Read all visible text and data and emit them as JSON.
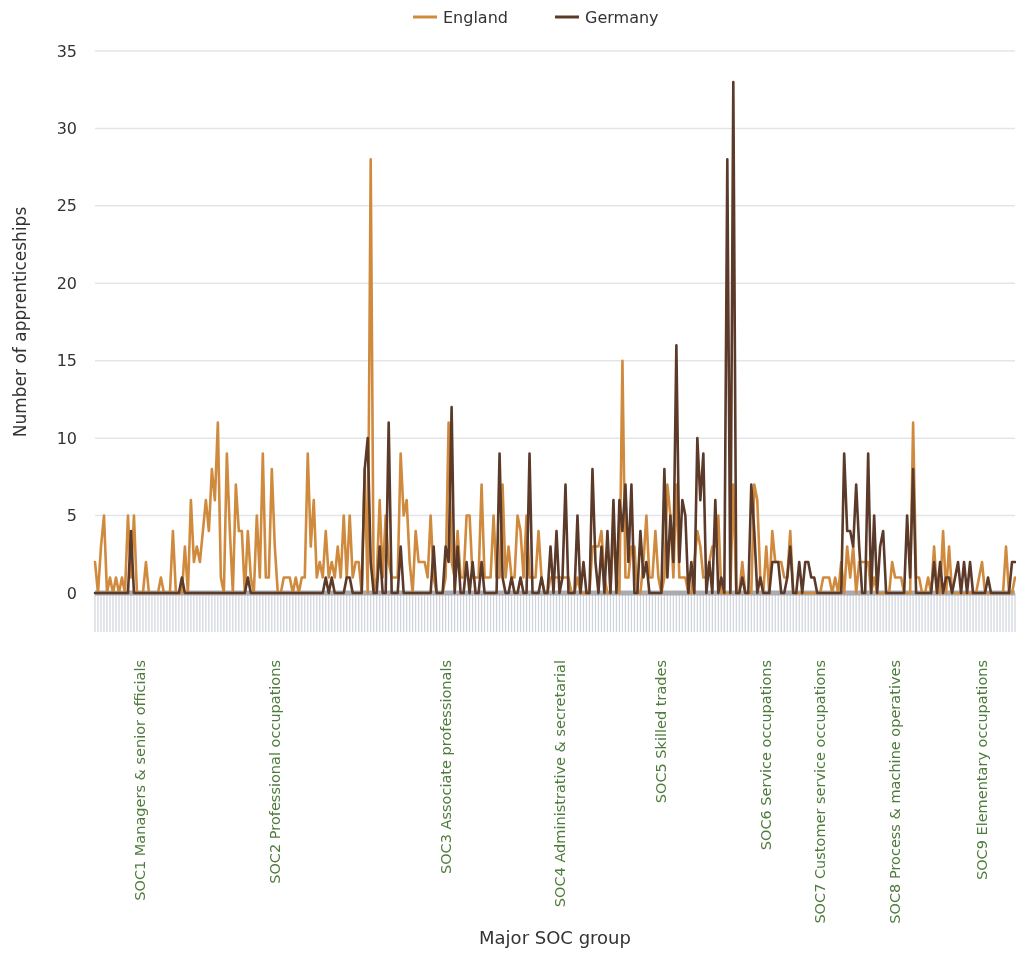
{
  "chart_data": {
    "type": "line",
    "xlabel": "Major SOC group",
    "ylabel": "Number of apprenticeships",
    "categories": [
      null,
      null,
      null,
      null,
      null,
      null,
      null,
      null,
      null,
      null,
      null,
      null,
      null,
      null,
      null,
      "SOC1 Managers & senior officials",
      null,
      null,
      null,
      null,
      null,
      null,
      null,
      null,
      null,
      null,
      null,
      null,
      null,
      null,
      null,
      null,
      null,
      null,
      null,
      null,
      null,
      null,
      null,
      null,
      null,
      null,
      null,
      null,
      null,
      null,
      null,
      null,
      null,
      null,
      null,
      null,
      null,
      null,
      null,
      null,
      null,
      null,
      null,
      null,
      "SOC2 Professional occupations",
      null,
      null,
      null,
      null,
      null,
      null,
      null,
      null,
      null,
      null,
      null,
      null,
      null,
      null,
      null,
      null,
      null,
      null,
      null,
      null,
      null,
      null,
      null,
      null,
      null,
      null,
      null,
      null,
      null,
      null,
      null,
      null,
      null,
      null,
      null,
      null,
      null,
      null,
      null,
      null,
      null,
      null,
      null,
      null,
      null,
      null,
      null,
      null,
      null,
      null,
      null,
      null,
      null,
      null,
      null,
      null,
      "SOC3 Associate professionals",
      null,
      null,
      null,
      null,
      null,
      null,
      null,
      null,
      null,
      null,
      null,
      null,
      null,
      null,
      null,
      null,
      null,
      null,
      null,
      null,
      null,
      null,
      null,
      null,
      null,
      null,
      null,
      null,
      null,
      null,
      null,
      null,
      null,
      null,
      null,
      null,
      null,
      "SOC4 Administrative & secretarial",
      null,
      null,
      null,
      null,
      null,
      null,
      null,
      null,
      null,
      null,
      null,
      null,
      null,
      null,
      null,
      null,
      null,
      null,
      null,
      null,
      null,
      null,
      null,
      null,
      null,
      null,
      null,
      null,
      null,
      null,
      null,
      null,
      null,
      "SOC5 Skilled trades",
      null,
      null,
      null,
      null,
      null,
      null,
      null,
      null,
      null,
      null,
      null,
      null,
      null,
      null,
      null,
      null,
      null,
      null,
      null,
      null,
      null,
      null,
      null,
      null,
      null,
      null,
      null,
      null,
      null,
      null,
      null,
      null,
      null,
      null,
      "SOC6 Service occupations",
      null,
      null,
      null,
      null,
      null,
      null,
      null,
      null,
      null,
      null,
      null,
      null,
      null,
      null,
      null,
      null,
      null,
      "SOC7 Customer service occupations",
      null,
      null,
      null,
      null,
      null,
      null,
      null,
      null,
      null,
      null,
      null,
      null,
      null,
      null,
      null,
      null,
      null,
      null,
      null,
      null,
      null,
      null,
      null,
      null,
      "SOC8 Process & machine operatives",
      null,
      null,
      null,
      null,
      null,
      null,
      null,
      null,
      null,
      null,
      null,
      null,
      null,
      null,
      null,
      null,
      null,
      null,
      null,
      null,
      null,
      null,
      null,
      null,
      null,
      null,
      null,
      null,
      "SOC9 Elementary occupations",
      null,
      null,
      null,
      null,
      null,
      null,
      null,
      null,
      null,
      null,
      null
    ],
    "ylim": [
      0,
      35
    ],
    "yticks": [
      0,
      5,
      10,
      15,
      20,
      25,
      30,
      35
    ],
    "grid": "y",
    "legend": "top",
    "line_style": "solid",
    "series": [
      {
        "name": "England",
        "color": "#d08a3e",
        "values": [
          2,
          0,
          3,
          5,
          0,
          1,
          0,
          1,
          0,
          1,
          0,
          5,
          1,
          5,
          0,
          0,
          0,
          2,
          0,
          0,
          0,
          0,
          1,
          0,
          0,
          0,
          4,
          0,
          0,
          0,
          3,
          0,
          6,
          2,
          3,
          2,
          4,
          6,
          4,
          8,
          6,
          11,
          1,
          0,
          9,
          4,
          0,
          7,
          4,
          4,
          0,
          4,
          1,
          0,
          5,
          1,
          9,
          1,
          1,
          8,
          3,
          0,
          0,
          1,
          1,
          1,
          0,
          1,
          0,
          1,
          1,
          9,
          3,
          6,
          1,
          2,
          1,
          4,
          1,
          2,
          1,
          3,
          1,
          5,
          1,
          5,
          1,
          2,
          2,
          0,
          8,
          0,
          28,
          0,
          1,
          6,
          1,
          5,
          2,
          1,
          1,
          1,
          9,
          5,
          6,
          2,
          0,
          4,
          2,
          2,
          2,
          1,
          5,
          1,
          0,
          0,
          0,
          1,
          11,
          2,
          1,
          4,
          1,
          1,
          5,
          5,
          1,
          1,
          1,
          7,
          1,
          1,
          1,
          5,
          1,
          1,
          7,
          1,
          3,
          1,
          1,
          5,
          4,
          1,
          5,
          1,
          1,
          1,
          4,
          1,
          0,
          0,
          1,
          1,
          1,
          1,
          1,
          1,
          1,
          0,
          0,
          1,
          0,
          0,
          0,
          0,
          3,
          3,
          3,
          4,
          1,
          0,
          0,
          4,
          1,
          0,
          15,
          1,
          1,
          3,
          3,
          0,
          0,
          2,
          5,
          1,
          1,
          4,
          1,
          0,
          1,
          7,
          5,
          1,
          7,
          1,
          1,
          1,
          0,
          0,
          2,
          4,
          3,
          1,
          1,
          2,
          3,
          3,
          5,
          0,
          0,
          0,
          0,
          7,
          0,
          0,
          2,
          0,
          0,
          0,
          7,
          6,
          1,
          0,
          3,
          0,
          4,
          2,
          2,
          2,
          1,
          1,
          4,
          0,
          0,
          0,
          0,
          0,
          0,
          0,
          0,
          0,
          0,
          1,
          1,
          1,
          0,
          1,
          0,
          2,
          0,
          3,
          1,
          3,
          0,
          2,
          2,
          2,
          2,
          0,
          1,
          0,
          0,
          0,
          0,
          0,
          2,
          1,
          1,
          1,
          0,
          0,
          0,
          11,
          1,
          1,
          0,
          0,
          1,
          0,
          3,
          0,
          0,
          4,
          0,
          3,
          0,
          0,
          0,
          0,
          0,
          0,
          0,
          0,
          0,
          1,
          2,
          0,
          0,
          0,
          0,
          0,
          0,
          0,
          3,
          0,
          0,
          1
        ]
      },
      {
        "name": "Germany",
        "color": "#5c3a2a",
        "values": [
          0,
          0,
          0,
          0,
          0,
          0,
          0,
          0,
          0,
          0,
          0,
          0,
          4,
          0,
          0,
          0,
          0,
          0,
          0,
          0,
          0,
          0,
          0,
          0,
          0,
          0,
          0,
          0,
          0,
          1,
          0,
          0,
          0,
          0,
          0,
          0,
          0,
          0,
          0,
          0,
          0,
          0,
          0,
          0,
          0,
          0,
          0,
          0,
          0,
          0,
          0,
          1,
          0,
          0,
          0,
          0,
          0,
          0,
          0,
          0,
          0,
          0,
          0,
          0,
          0,
          0,
          0,
          0,
          0,
          0,
          0,
          0,
          0,
          0,
          0,
          0,
          0,
          1,
          0,
          1,
          0,
          0,
          0,
          0,
          1,
          1,
          0,
          0,
          0,
          0,
          8,
          10,
          2,
          0,
          0,
          3,
          0,
          0,
          11,
          0,
          0,
          0,
          3,
          0,
          0,
          0,
          0,
          0,
          0,
          0,
          0,
          0,
          0,
          3,
          0,
          0,
          0,
          3,
          2,
          12,
          0,
          3,
          0,
          0,
          2,
          0,
          2,
          0,
          0,
          2,
          0,
          0,
          0,
          0,
          0,
          9,
          1,
          0,
          0,
          1,
          0,
          0,
          1,
          0,
          0,
          9,
          0,
          0,
          0,
          1,
          0,
          0,
          3,
          0,
          4,
          0,
          1,
          7,
          0,
          0,
          0,
          5,
          0,
          2,
          0,
          0,
          8,
          2,
          0,
          3,
          0,
          4,
          0,
          6,
          0,
          6,
          4,
          7,
          2,
          7,
          0,
          0,
          4,
          1,
          2,
          0,
          0,
          0,
          0,
          0,
          8,
          1,
          5,
          2,
          16,
          2,
          6,
          5,
          0,
          2,
          0,
          10,
          6,
          9,
          0,
          2,
          0,
          6,
          0,
          1,
          0,
          28,
          0,
          33,
          0,
          0,
          1,
          0,
          0,
          7,
          4,
          0,
          1,
          0,
          0,
          0,
          2,
          2,
          2,
          0,
          0,
          1,
          3,
          0,
          0,
          2,
          0,
          2,
          2,
          1,
          1,
          0,
          0,
          0,
          0,
          0,
          0,
          0,
          0,
          0,
          9,
          4,
          4,
          3,
          7,
          3,
          0,
          0,
          9,
          0,
          5,
          0,
          3,
          4,
          0,
          0,
          0,
          0,
          0,
          0,
          0,
          5,
          1,
          8,
          0,
          0,
          0,
          0,
          0,
          0,
          2,
          0,
          2,
          0,
          1,
          1,
          0,
          1,
          2,
          0,
          2,
          0,
          2,
          0,
          0,
          0,
          0,
          0,
          1,
          0,
          0,
          0,
          0,
          0,
          0,
          0,
          2,
          2
        ]
      }
    ]
  }
}
